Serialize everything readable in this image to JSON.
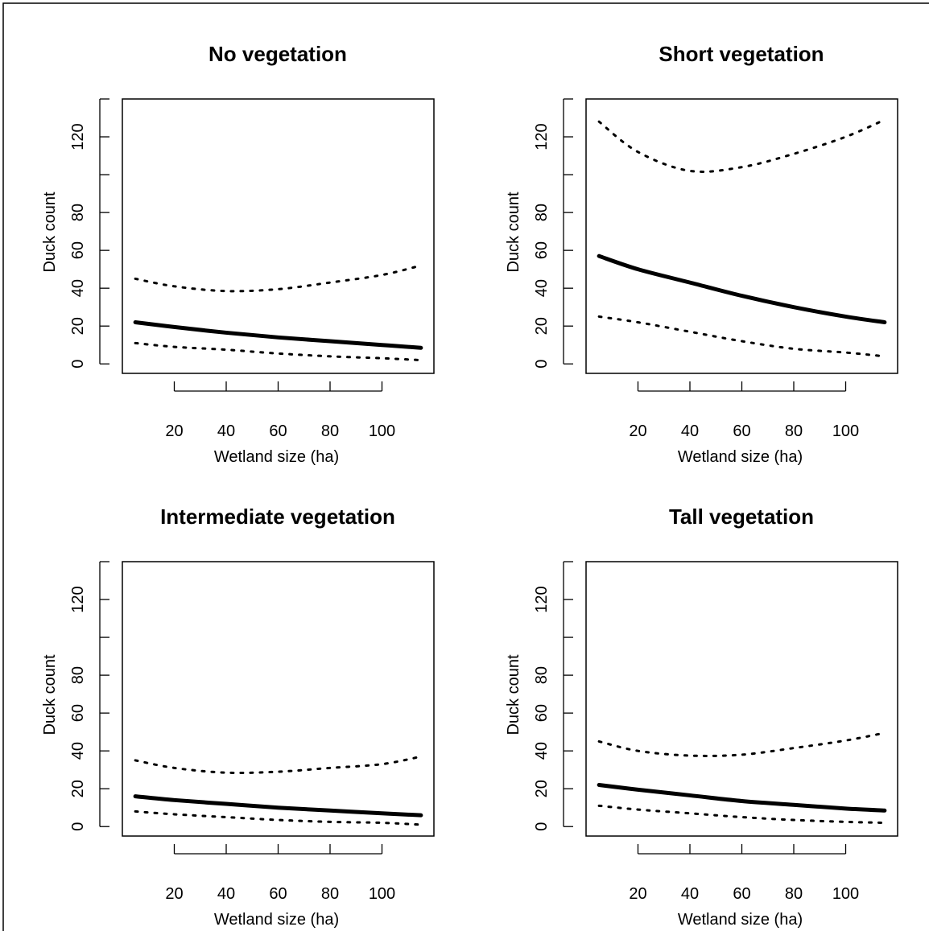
{
  "chart_data": [
    {
      "type": "line",
      "title": "No vegetation",
      "xlabel": "Wetland size (ha)",
      "ylabel": "Duck count",
      "xlim": [
        0,
        120
      ],
      "ylim": [
        -5,
        140
      ],
      "x_ticks": [
        20,
        40,
        60,
        80,
        100
      ],
      "y_ticks": [
        0,
        20,
        40,
        60,
        80,
        100,
        120,
        140
      ],
      "y_tick_labels": [
        "0",
        "20",
        "40",
        "60",
        "80",
        "",
        "120",
        ""
      ],
      "x": [
        5,
        20,
        40,
        60,
        80,
        100,
        115
      ],
      "series": [
        {
          "role": "fit",
          "values": [
            22,
            19.5,
            16.5,
            14,
            12,
            10,
            8.5
          ]
        },
        {
          "role": "upper",
          "values": [
            45,
            41,
            38.5,
            39.5,
            43,
            47,
            52
          ]
        },
        {
          "role": "lower",
          "values": [
            11,
            9,
            7.5,
            5.5,
            4,
            3,
            2
          ]
        }
      ],
      "grid": false,
      "legend": "none"
    },
    {
      "type": "line",
      "title": "Short vegetation",
      "xlabel": "Wetland size (ha)",
      "ylabel": "Duck count",
      "xlim": [
        0,
        120
      ],
      "ylim": [
        -5,
        140
      ],
      "x_ticks": [
        20,
        40,
        60,
        80,
        100
      ],
      "y_ticks": [
        0,
        20,
        40,
        60,
        80,
        100,
        120,
        140
      ],
      "y_tick_labels": [
        "0",
        "20",
        "40",
        "60",
        "80",
        "",
        "120",
        ""
      ],
      "x": [
        5,
        20,
        40,
        60,
        80,
        100,
        115
      ],
      "series": [
        {
          "role": "fit",
          "values": [
            57,
            50,
            43,
            36,
            30,
            25,
            22
          ]
        },
        {
          "role": "upper",
          "values": [
            128,
            112,
            102,
            104,
            111,
            120,
            129
          ]
        },
        {
          "role": "lower",
          "values": [
            25,
            22,
            17,
            12,
            8,
            6,
            4
          ]
        }
      ],
      "grid": false,
      "legend": "none"
    },
    {
      "type": "line",
      "title": "Intermediate vegetation",
      "xlabel": "Wetland size (ha)",
      "ylabel": "Duck count",
      "xlim": [
        0,
        120
      ],
      "ylim": [
        -5,
        140
      ],
      "x_ticks": [
        20,
        40,
        60,
        80,
        100
      ],
      "y_ticks": [
        0,
        20,
        40,
        60,
        80,
        100,
        120,
        140
      ],
      "y_tick_labels": [
        "0",
        "20",
        "40",
        "60",
        "80",
        "",
        "120",
        ""
      ],
      "x": [
        5,
        20,
        40,
        60,
        80,
        100,
        115
      ],
      "series": [
        {
          "role": "fit",
          "values": [
            16,
            14,
            12,
            10,
            8.5,
            7,
            6
          ]
        },
        {
          "role": "upper",
          "values": [
            35,
            31,
            28.5,
            29,
            31,
            33,
            37
          ]
        },
        {
          "role": "lower",
          "values": [
            8,
            6.5,
            5,
            3.5,
            2.5,
            2,
            1
          ]
        }
      ],
      "grid": false,
      "legend": "none"
    },
    {
      "type": "line",
      "title": "Tall vegetation",
      "xlabel": "Wetland size (ha)",
      "ylabel": "Duck count",
      "xlim": [
        0,
        120
      ],
      "ylim": [
        -5,
        140
      ],
      "x_ticks": [
        20,
        40,
        60,
        80,
        100
      ],
      "y_ticks": [
        0,
        20,
        40,
        60,
        80,
        100,
        120,
        140
      ],
      "y_tick_labels": [
        "0",
        "20",
        "40",
        "60",
        "80",
        "",
        "120",
        ""
      ],
      "x": [
        5,
        20,
        40,
        60,
        80,
        100,
        115
      ],
      "series": [
        {
          "role": "fit",
          "values": [
            22,
            19.5,
            16.5,
            13.5,
            11.5,
            9.5,
            8.5
          ]
        },
        {
          "role": "upper",
          "values": [
            45,
            40,
            37.5,
            38,
            41.5,
            45.5,
            49.5
          ]
        },
        {
          "role": "lower",
          "values": [
            11,
            9,
            7,
            5,
            3.5,
            2.5,
            2
          ]
        }
      ],
      "grid": false,
      "legend": "none"
    }
  ]
}
